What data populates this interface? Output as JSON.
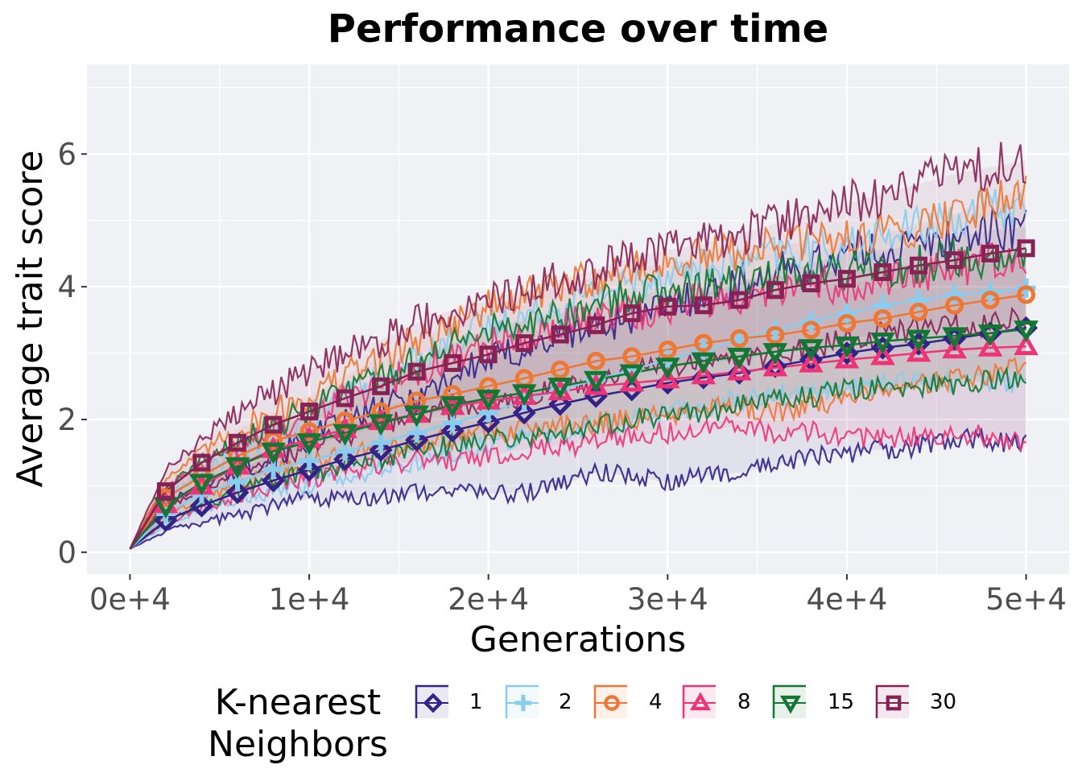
{
  "chart_data": {
    "type": "line",
    "title": "Performance over time",
    "xlabel": "Generations",
    "ylabel": "Average trait score",
    "xlim": [
      -2400,
      52400
    ],
    "ylim": [
      -0.33,
      7.35
    ],
    "x_ticks": [
      0,
      10000,
      20000,
      30000,
      40000,
      50000
    ],
    "x_tick_labels": [
      "0e+4",
      "1e+4",
      "2e+4",
      "3e+4",
      "4e+4",
      "5e+4"
    ],
    "y_ticks": [
      0,
      2,
      4,
      6
    ],
    "y_tick_labels": [
      "0",
      "2",
      "4",
      "6"
    ],
    "grid": true,
    "legend": {
      "title": "K-nearest\nNeighbors",
      "position": "bottom"
    },
    "x": [
      0,
      2000,
      4000,
      6000,
      8000,
      10000,
      12000,
      14000,
      16000,
      18000,
      20000,
      22000,
      24000,
      26000,
      28000,
      30000,
      32000,
      34000,
      36000,
      38000,
      40000,
      42000,
      44000,
      46000,
      48000,
      50000
    ],
    "series": [
      {
        "name": "1",
        "color": "#332288",
        "marker": "diamond",
        "values": [
          0.05,
          0.48,
          0.7,
          0.9,
          1.08,
          1.24,
          1.4,
          1.54,
          1.69,
          1.83,
          1.96,
          2.1,
          2.23,
          2.35,
          2.45,
          2.55,
          2.63,
          2.7,
          2.8,
          2.9,
          3.0,
          3.08,
          3.14,
          3.22,
          3.3,
          3.38
        ],
        "upper": [
          0.05,
          0.75,
          1.0,
          1.25,
          1.45,
          1.7,
          1.95,
          2.15,
          2.35,
          2.65,
          2.9,
          3.05,
          3.25,
          3.4,
          3.55,
          3.7,
          3.9,
          4.05,
          4.2,
          4.35,
          4.5,
          4.55,
          4.62,
          4.75,
          4.85,
          4.9
        ],
        "lower": [
          0.05,
          0.32,
          0.45,
          0.55,
          0.7,
          0.8,
          0.78,
          0.85,
          0.9,
          0.95,
          0.88,
          0.9,
          1.0,
          1.2,
          1.15,
          1.05,
          1.15,
          1.2,
          1.3,
          1.45,
          1.5,
          1.55,
          1.6,
          1.7,
          1.7,
          1.62
        ]
      },
      {
        "name": "2",
        "color": "#88ccee",
        "marker": "plus",
        "values": [
          0.05,
          0.58,
          0.88,
          1.06,
          1.25,
          1.38,
          1.52,
          1.65,
          1.8,
          1.95,
          2.1,
          2.28,
          2.45,
          2.6,
          2.75,
          2.9,
          3.05,
          3.2,
          3.35,
          3.48,
          3.6,
          3.72,
          3.8,
          3.88,
          3.92,
          3.98
        ],
        "upper": [
          0.05,
          0.85,
          1.2,
          1.5,
          1.75,
          2.05,
          2.35,
          2.6,
          2.9,
          3.2,
          3.4,
          3.55,
          3.7,
          3.9,
          4.05,
          4.2,
          4.3,
          4.4,
          4.5,
          4.55,
          4.6,
          4.75,
          4.9,
          5.05,
          5.15,
          5.2
        ],
        "lower": [
          0.05,
          0.42,
          0.62,
          0.75,
          0.9,
          1.0,
          1.15,
          1.25,
          1.35,
          1.5,
          1.65,
          1.75,
          1.85,
          1.9,
          2.0,
          2.1,
          2.2,
          2.3,
          2.35,
          2.4,
          2.45,
          2.5,
          2.55,
          2.6,
          2.6,
          2.5
        ]
      },
      {
        "name": "4",
        "color": "#ee7733",
        "marker": "circle",
        "values": [
          0.05,
          0.82,
          1.15,
          1.45,
          1.68,
          1.82,
          1.98,
          2.12,
          2.28,
          2.38,
          2.5,
          2.62,
          2.75,
          2.88,
          2.95,
          3.05,
          3.15,
          3.22,
          3.27,
          3.35,
          3.45,
          3.52,
          3.62,
          3.72,
          3.8,
          3.88
        ],
        "upper": [
          0.05,
          1.1,
          1.5,
          1.85,
          2.1,
          2.35,
          2.65,
          2.95,
          3.2,
          3.45,
          3.7,
          3.85,
          4.0,
          4.15,
          4.25,
          4.35,
          4.45,
          4.55,
          4.62,
          4.68,
          4.75,
          4.8,
          4.95,
          5.1,
          5.3,
          5.5
        ],
        "lower": [
          0.05,
          0.55,
          0.8,
          1.0,
          1.2,
          1.35,
          1.45,
          1.55,
          1.65,
          1.7,
          1.8,
          1.85,
          1.9,
          1.95,
          2.0,
          2.05,
          2.15,
          2.2,
          2.1,
          2.2,
          2.3,
          2.4,
          2.5,
          2.6,
          2.7,
          2.8
        ]
      },
      {
        "name": "8",
        "color": "#ee3377",
        "marker": "triangle",
        "values": [
          0.05,
          0.72,
          1.0,
          1.3,
          1.55,
          1.7,
          1.85,
          1.97,
          2.08,
          2.2,
          2.28,
          2.35,
          2.42,
          2.5,
          2.55,
          2.6,
          2.66,
          2.72,
          2.78,
          2.84,
          2.9,
          2.95,
          3.0,
          3.05,
          3.08,
          3.1
        ],
        "upper": [
          0.05,
          0.98,
          1.3,
          1.6,
          1.85,
          2.05,
          2.3,
          2.55,
          2.75,
          2.95,
          3.15,
          3.3,
          3.4,
          3.5,
          3.6,
          3.7,
          3.8,
          3.85,
          3.9,
          4.0,
          4.05,
          4.1,
          4.2,
          4.3,
          4.35,
          4.4
        ],
        "lower": [
          0.05,
          0.45,
          0.65,
          0.85,
          1.0,
          1.1,
          1.2,
          1.3,
          1.38,
          1.38,
          1.45,
          1.55,
          1.6,
          1.65,
          1.75,
          1.8,
          1.85,
          1.9,
          1.8,
          1.82,
          1.75,
          1.72,
          1.75,
          1.8,
          1.75,
          1.65
        ]
      },
      {
        "name": "15",
        "color": "#117733",
        "marker": "triangle-down",
        "values": [
          0.05,
          0.7,
          1.05,
          1.3,
          1.52,
          1.66,
          1.8,
          1.95,
          2.08,
          2.22,
          2.32,
          2.4,
          2.5,
          2.6,
          2.7,
          2.8,
          2.88,
          2.95,
          3.02,
          3.08,
          3.12,
          3.18,
          3.22,
          3.26,
          3.3,
          3.36
        ],
        "upper": [
          0.05,
          0.95,
          1.38,
          1.68,
          1.95,
          2.15,
          2.4,
          2.65,
          2.9,
          3.15,
          3.35,
          3.5,
          3.6,
          3.75,
          3.85,
          3.95,
          4.0,
          4.1,
          4.15,
          4.2,
          4.25,
          4.3,
          4.35,
          4.4,
          4.45,
          4.5
        ],
        "lower": [
          0.05,
          0.48,
          0.7,
          0.9,
          1.08,
          1.2,
          1.3,
          1.42,
          1.52,
          1.62,
          1.7,
          1.75,
          1.8,
          1.9,
          2.0,
          2.05,
          2.1,
          2.2,
          2.3,
          2.35,
          2.45,
          2.5,
          2.52,
          2.55,
          2.58,
          2.6
        ]
      },
      {
        "name": "30",
        "color": "#882255",
        "marker": "square",
        "values": [
          0.05,
          0.92,
          1.35,
          1.65,
          1.92,
          2.12,
          2.32,
          2.5,
          2.72,
          2.85,
          2.98,
          3.15,
          3.28,
          3.42,
          3.6,
          3.7,
          3.72,
          3.8,
          3.95,
          4.05,
          4.12,
          4.22,
          4.32,
          4.4,
          4.5,
          4.58
        ],
        "upper": [
          0.05,
          1.25,
          1.7,
          2.1,
          2.4,
          2.75,
          3.0,
          3.2,
          3.45,
          3.65,
          3.8,
          3.95,
          4.1,
          4.25,
          4.45,
          4.55,
          4.65,
          4.8,
          4.95,
          5.1,
          5.25,
          5.4,
          5.55,
          5.7,
          5.8,
          5.9
        ],
        "lower": [
          0.05,
          0.65,
          0.95,
          1.2,
          1.4,
          1.6,
          1.75,
          1.9,
          2.05,
          2.15,
          2.25,
          2.35,
          2.45,
          2.55,
          2.7,
          2.8,
          2.85,
          2.9,
          3.0,
          3.1,
          3.2,
          3.3,
          3.35,
          3.4,
          3.45,
          3.5
        ]
      }
    ]
  }
}
